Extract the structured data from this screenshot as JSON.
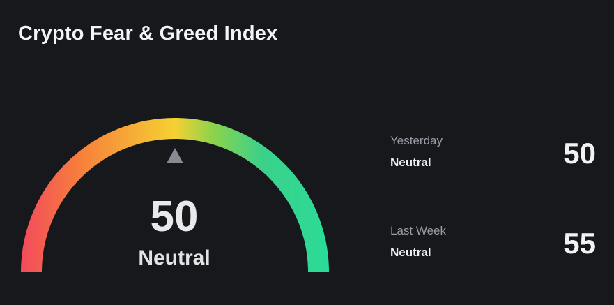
{
  "widget": {
    "title": "Crypto Fear & Greed Index",
    "current": {
      "value": "50",
      "sentiment": "Neutral",
      "gauge_fraction": 0.5
    },
    "history": [
      {
        "period": "Yesterday",
        "sentiment": "Neutral",
        "value": "50"
      },
      {
        "period": "Last Week",
        "sentiment": "Neutral",
        "value": "55"
      }
    ],
    "colors": {
      "background": "#17181c",
      "gauge_gradient": [
        "#f24a5c",
        "#f7813a",
        "#f6d133",
        "#8fd24a",
        "#3bd18a",
        "#2bdb98"
      ],
      "pointer": "#878a94"
    }
  }
}
